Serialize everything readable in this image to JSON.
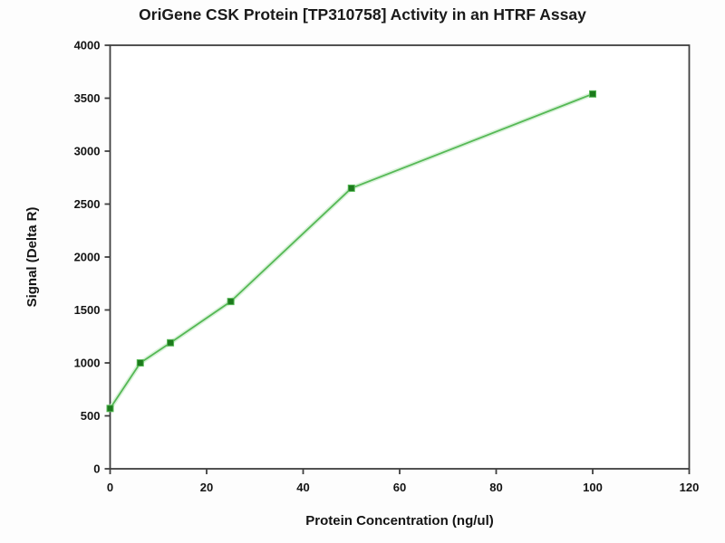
{
  "chart_data": {
    "type": "line",
    "title": "OriGene CSK Protein [TP310758] Activity in an HTRF Assay",
    "xlabel": "Protein Concentration (ng/ul)",
    "ylabel": "Signal (Delta R)",
    "x": [
      0,
      6.25,
      12.5,
      25,
      50,
      100
    ],
    "y": [
      570,
      1000,
      1190,
      1580,
      2650,
      3540
    ],
    "xlim": [
      0,
      120
    ],
    "ylim": [
      0,
      4000
    ],
    "x_ticks": [
      0,
      20,
      40,
      60,
      80,
      100,
      120
    ],
    "y_ticks": [
      0,
      500,
      1000,
      1500,
      2000,
      2500,
      3000,
      3500,
      4000
    ],
    "grid": false,
    "legend": "none",
    "colors": {
      "line": "#55b855",
      "line_halo": "#d9f2d9",
      "marker": "#1c7a1c",
      "frame": "#3f3f3f",
      "text": "#141414",
      "background": "#fdfdfd"
    },
    "marker_shape": "square"
  }
}
